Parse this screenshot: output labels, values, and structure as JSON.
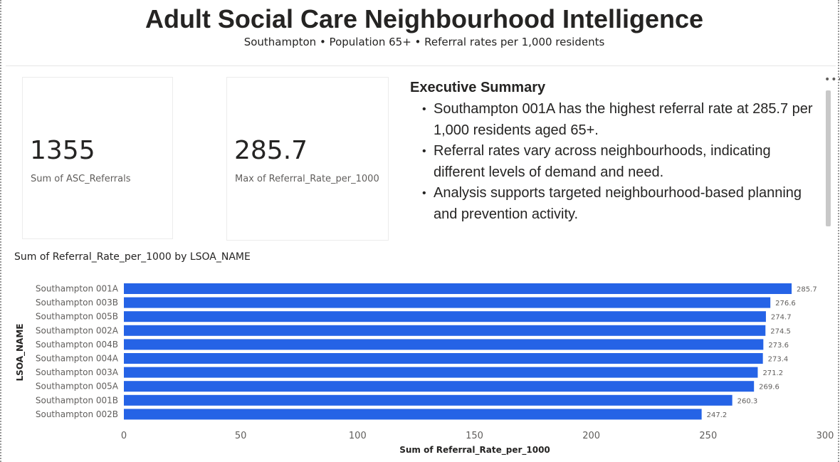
{
  "header": {
    "title": "Adult Social Care Neighbourhood Intelligence",
    "subtitle": "Southampton • Population 65+ • Referral rates per 1,000 residents"
  },
  "cards": [
    {
      "value": "1355",
      "label": "Sum of ASC_Referrals"
    },
    {
      "value": "285.7",
      "label": "Max of Referral_Rate_per_1000"
    }
  ],
  "summary": {
    "heading": "Executive Summary",
    "bullets": [
      "Southampton 001A has the highest referral rate at 285.7 per 1,000 residents aged 65+.",
      "Referral rates vary across neighbourhoods, indicating different levels of demand and need.",
      "Analysis supports targeted neighbourhood-based planning and prevention activity."
    ]
  },
  "icons": {
    "more": "more-options-icon"
  },
  "colors": {
    "bar": "#2563e6",
    "text": "#252423",
    "muted": "#605e5c"
  },
  "chart_data": {
    "type": "bar",
    "orientation": "horizontal",
    "title": "Sum of Referral_Rate_per_1000 by LSOA_NAME",
    "xlabel": "Sum of Referral_Rate_per_1000",
    "ylabel": "LSOA_NAME",
    "xlim": [
      0,
      300
    ],
    "xticks": [
      0,
      50,
      100,
      150,
      200,
      250,
      300
    ],
    "categories": [
      "Southampton 001A",
      "Southampton 003B",
      "Southampton 005B",
      "Southampton 002A",
      "Southampton 004B",
      "Southampton 004A",
      "Southampton 003A",
      "Southampton 005A",
      "Southampton 001B",
      "Southampton 002B"
    ],
    "values": [
      285.7,
      276.6,
      274.7,
      274.5,
      273.6,
      273.4,
      271.2,
      269.6,
      260.3,
      247.2
    ],
    "data_labels": [
      "285.7",
      "276.6",
      "274.7",
      "274.5",
      "273.6",
      "273.4",
      "271.2",
      "269.6",
      "260.3",
      "247.2"
    ],
    "grid": false
  }
}
